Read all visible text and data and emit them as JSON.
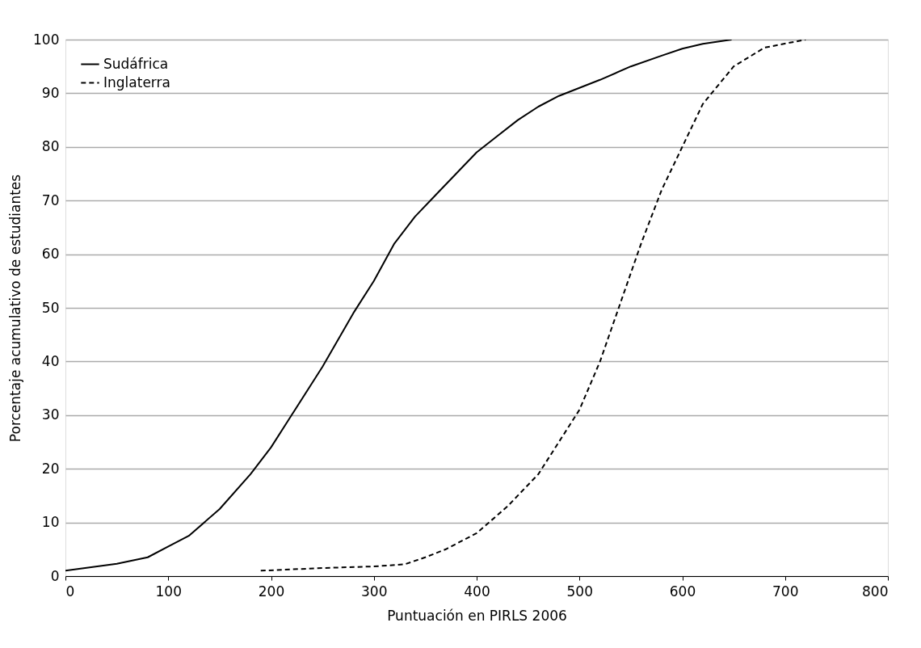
{
  "chart_data": {
    "type": "line",
    "xlabel": "Puntuación en PIRLS 2006",
    "ylabel": "Porcentaje acumulativo de estudiantes",
    "xlim": [
      0,
      800
    ],
    "xticks": [
      0,
      100,
      200,
      300,
      400,
      500,
      600,
      700,
      800
    ],
    "ylim": [
      0,
      100
    ],
    "yticks": [
      0,
      10,
      20,
      30,
      40,
      50,
      60,
      70,
      80,
      90,
      100
    ],
    "grid": "y",
    "legend": "top left",
    "marker": "none",
    "series": [
      {
        "name": "Sudáfrica",
        "color": "#000000",
        "line_style": "solid",
        "x": [
          0,
          50,
          80,
          100,
          120,
          150,
          180,
          200,
          220,
          250,
          280,
          300,
          320,
          340,
          360,
          380,
          400,
          420,
          440,
          460,
          480,
          500,
          520,
          550,
          580,
          600,
          620,
          648
        ],
        "values": [
          1,
          2.3,
          3.5,
          5.5,
          7.5,
          12.5,
          19,
          24,
          30,
          39,
          49,
          55,
          62,
          67,
          71,
          75,
          79,
          82,
          85,
          87.5,
          89.5,
          91,
          92.5,
          95,
          97,
          98.3,
          99.2,
          100
        ]
      },
      {
        "name": "Inglaterra",
        "color": "#000000",
        "line_style": "dashed",
        "x": [
          190,
          250,
          300,
          330,
          350,
          370,
          400,
          430,
          460,
          480,
          500,
          520,
          540,
          560,
          580,
          600,
          620,
          650,
          680,
          720
        ],
        "values": [
          1,
          1.5,
          1.8,
          2.2,
          3.5,
          5,
          8,
          13,
          19,
          25,
          31,
          40,
          51,
          62,
          72,
          80,
          88,
          95,
          98.5,
          100
        ]
      }
    ]
  }
}
